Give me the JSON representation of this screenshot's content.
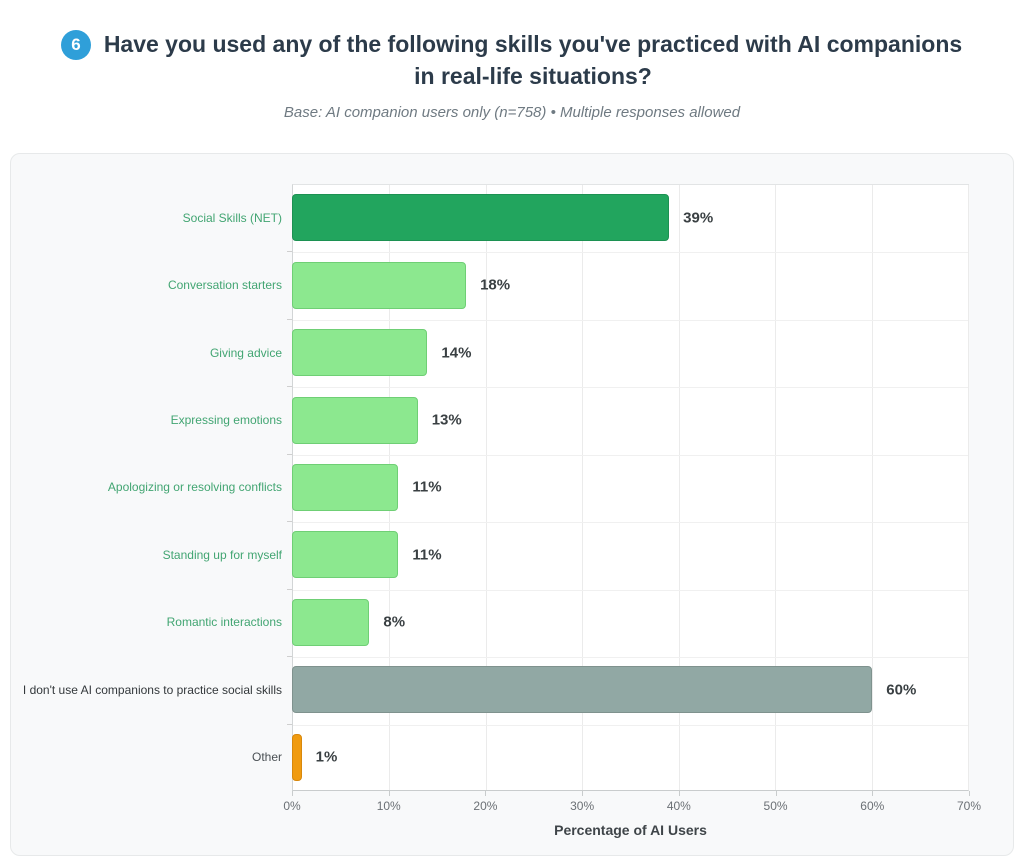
{
  "header": {
    "question_number": "6",
    "badge_color": "#2f9fd9",
    "title": "Have you used any of the following skills you've practiced with AI companions in real-life situations?",
    "subtitle": "Base: AI companion users only (n=758) • Multiple responses allowed"
  },
  "chart_data": {
    "type": "bar",
    "orientation": "horizontal",
    "title": "Have you used any of the following skills you've practiced with AI companions in real-life situations?",
    "xlabel": "Percentage of AI Users",
    "ylabel": "",
    "xlim": [
      0,
      70
    ],
    "x_tick_step": 10,
    "x_ticks": [
      "0%",
      "10%",
      "20%",
      "30%",
      "40%",
      "50%",
      "60%",
      "70%"
    ],
    "grid": true,
    "legend": "none",
    "categories": [
      "Social Skills (NET)",
      "Conversation starters",
      "Giving advice",
      "Expressing emotions",
      "Apologizing or resolving conflicts",
      "Standing up for myself",
      "Romantic interactions",
      "I don't use AI companions to practice social skills",
      "Other"
    ],
    "values": [
      39,
      18,
      14,
      13,
      11,
      11,
      8,
      60,
      1
    ],
    "bars": [
      {
        "label": "Social Skills (NET)",
        "value": 39,
        "value_label": "39%",
        "fill": "#22a55e",
        "border": "#1c9152",
        "label_color": "#42a572"
      },
      {
        "label": "Conversation starters",
        "value": 18,
        "value_label": "18%",
        "fill": "#8ce88f",
        "border": "#6fcf75",
        "label_color": "#42a572"
      },
      {
        "label": "Giving advice",
        "value": 14,
        "value_label": "14%",
        "fill": "#8ce88f",
        "border": "#6fcf75",
        "label_color": "#42a572"
      },
      {
        "label": "Expressing emotions",
        "value": 13,
        "value_label": "13%",
        "fill": "#8ce88f",
        "border": "#6fcf75",
        "label_color": "#42a572"
      },
      {
        "label": "Apologizing or resolving conflicts",
        "value": 11,
        "value_label": "11%",
        "fill": "#8ce88f",
        "border": "#6fcf75",
        "label_color": "#42a572"
      },
      {
        "label": "Standing up for myself",
        "value": 11,
        "value_label": "11%",
        "fill": "#8ce88f",
        "border": "#6fcf75",
        "label_color": "#42a572"
      },
      {
        "label": "Romantic interactions",
        "value": 8,
        "value_label": "8%",
        "fill": "#8ce88f",
        "border": "#6fcf75",
        "label_color": "#42a572"
      },
      {
        "label": "I don't use AI companions to practice social skills",
        "value": 60,
        "value_label": "60%",
        "fill": "#91a8a4",
        "border": "#7f928e",
        "label_color": "#33383b"
      },
      {
        "label": "Other",
        "value": 1,
        "value_label": "1%",
        "fill": "#f09b10",
        "border": "#d8880c",
        "label_color": "#4a5054"
      }
    ]
  }
}
